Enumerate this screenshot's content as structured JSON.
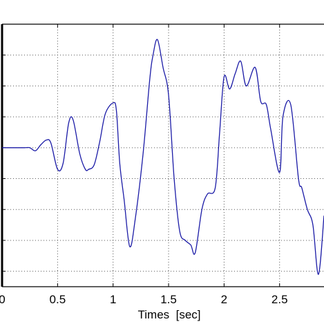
{
  "chart_data": {
    "type": "line",
    "title": "",
    "xlabel": "Times  [sec]",
    "ylabel": "",
    "xlim": [
      0,
      2.9
    ],
    "ylim": [
      -4.5,
      4
    ],
    "grid": true,
    "grid_style": "dotted",
    "x_ticks": [
      0,
      0.5,
      1,
      1.5,
      2,
      2.5
    ],
    "x_tick_labels": [
      "0",
      "0.5",
      "1",
      "1.5",
      "2",
      "2.5"
    ],
    "y_ticks": [
      -4,
      -3,
      -2,
      -1,
      0,
      1,
      2,
      3,
      4
    ],
    "y_tick_labels": [],
    "colors": {
      "line": "#1a1aa6",
      "axes": "#000000",
      "grid": "#555555"
    },
    "series": [
      {
        "x": [
          0,
          0.1,
          0.2,
          0.25,
          0.3,
          0.35,
          0.4,
          0.44,
          0.5,
          0.55,
          0.6,
          0.64,
          0.7,
          0.75,
          0.78,
          0.83,
          0.88,
          0.93,
          1.0,
          1.03,
          1.06,
          1.1,
          1.15,
          1.2,
          1.27,
          1.33,
          1.36,
          1.4,
          1.45,
          1.5,
          1.55,
          1.6,
          1.65,
          1.7,
          1.74,
          1.8,
          1.85,
          1.92,
          1.96,
          2.0,
          2.05,
          2.1,
          2.15,
          2.2,
          2.28,
          2.33,
          2.38,
          2.42,
          2.5,
          2.53,
          2.6,
          2.67,
          2.7,
          2.75,
          2.8,
          2.85,
          2.9
        ],
        "y": [
          0,
          0,
          0,
          0,
          -0.1,
          0.1,
          0.25,
          0.15,
          -0.7,
          -0.5,
          0.8,
          0.9,
          -0.2,
          -0.7,
          -0.7,
          -0.55,
          0.2,
          1.1,
          1.45,
          1.2,
          -0.5,
          -1.7,
          -3.2,
          -2.3,
          -0.2,
          2.2,
          3.0,
          3.5,
          2.6,
          1.7,
          -1.0,
          -2.7,
          -3.0,
          -3.15,
          -3.4,
          -2.0,
          -1.5,
          -1.3,
          0.5,
          2.3,
          1.9,
          2.4,
          2.8,
          2.0,
          2.6,
          1.5,
          1.4,
          0.6,
          -0.8,
          1.0,
          1.4,
          -1.0,
          -1.3,
          -2.0,
          -2.5,
          -4.1,
          -2.2
        ]
      }
    ]
  }
}
